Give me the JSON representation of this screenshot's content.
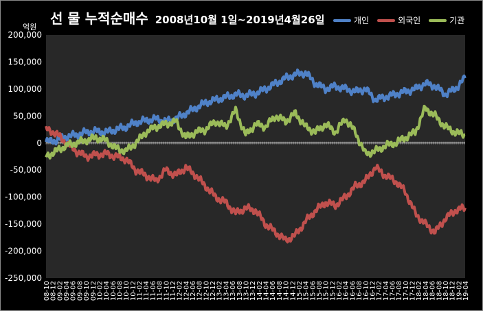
{
  "header": {
    "title_main": "선 물 누적순매수",
    "title_period": "2008년10월 1일~2019년4월26일",
    "unit_label": "억원"
  },
  "legend": [
    {
      "label": "개인",
      "color": "#4f81c7"
    },
    {
      "label": "외국인",
      "color": "#c0504d"
    },
    {
      "label": "기관",
      "color": "#9bbb59"
    }
  ],
  "chart_data": {
    "type": "line",
    "title": "선 물 누적순매수 2008년10월 1일~2019년4월26일",
    "ylabel": "억원",
    "ylim": [
      -250000,
      200000
    ],
    "yticks": [
      200000,
      150000,
      100000,
      50000,
      0,
      -50000,
      -100000,
      -150000,
      -200000,
      -250000
    ],
    "ytick_labels": [
      "200,000",
      "150,000",
      "100,000",
      "50,000",
      "0",
      "-50,000",
      "-100,000",
      "-150,000",
      "-200,000",
      "-250,000"
    ],
    "xtick_labels": [
      "08-10",
      "08-12",
      "09-02",
      "09-04",
      "09-06",
      "09-08",
      "09-10",
      "09-12",
      "10-02",
      "10-04",
      "10-06",
      "10-08",
      "10-10",
      "10-12",
      "11-02",
      "11-04",
      "11-06",
      "11-08",
      "11-10",
      "11-12",
      "12-02",
      "12-04",
      "12-06",
      "12-08",
      "12-10",
      "12-12",
      "13-02",
      "13-04",
      "13-06",
      "13-08",
      "13-10",
      "13-12",
      "14-02",
      "14-04",
      "14-06",
      "14-08",
      "14-10",
      "14-12",
      "15-02",
      "15-04",
      "15-06",
      "15-08",
      "15-10",
      "15-12",
      "16-02",
      "16-04",
      "16-06",
      "16-08",
      "16-10",
      "16-12",
      "17-02",
      "17-04",
      "17-06",
      "17-08",
      "17-10",
      "17-12",
      "18-02",
      "18-04",
      "18-06",
      "18-08",
      "18-10",
      "18-12",
      "19-02",
      "19-04"
    ],
    "grid": false,
    "legend_position": "top-right",
    "x": [
      "2008-10",
      "2009-01",
      "2009-04",
      "2009-07",
      "2009-10",
      "2010-01",
      "2010-04",
      "2010-07",
      "2010-10",
      "2011-01",
      "2011-04",
      "2011-07",
      "2011-10",
      "2012-01",
      "2012-04",
      "2012-07",
      "2012-10",
      "2013-01",
      "2013-04",
      "2013-07",
      "2013-10",
      "2014-01",
      "2014-04",
      "2014-07",
      "2014-10",
      "2015-01",
      "2015-04",
      "2015-07",
      "2015-10",
      "2016-01",
      "2016-04",
      "2016-07",
      "2016-10",
      "2017-01",
      "2017-04",
      "2017-07",
      "2017-10",
      "2018-01",
      "2018-04",
      "2018-07",
      "2018-10",
      "2019-01",
      "2019-04"
    ],
    "series": [
      {
        "name": "개인",
        "color": "#4f81c7",
        "values": [
          2000,
          5000,
          12000,
          15000,
          20000,
          22000,
          20000,
          25000,
          30000,
          38000,
          42000,
          45000,
          40000,
          45000,
          55000,
          65000,
          75000,
          80000,
          85000,
          90000,
          88000,
          92000,
          100000,
          110000,
          120000,
          127000,
          130000,
          110000,
          100000,
          105000,
          100000,
          95000,
          100000,
          80000,
          85000,
          90000,
          95000,
          100000,
          110000,
          105000,
          90000,
          100000,
          120000
        ]
      },
      {
        "name": "외국인",
        "color": "#c0504d",
        "values": [
          25000,
          18000,
          0,
          -15000,
          -25000,
          -22000,
          -20000,
          -25000,
          -30000,
          -50000,
          -60000,
          -70000,
          -50000,
          -60000,
          -45000,
          -60000,
          -80000,
          -100000,
          -110000,
          -130000,
          -120000,
          -125000,
          -150000,
          -165000,
          -180000,
          -170000,
          -145000,
          -125000,
          -110000,
          -115000,
          -100000,
          -80000,
          -70000,
          -45000,
          -60000,
          -70000,
          -90000,
          -130000,
          -150000,
          -165000,
          -140000,
          -125000,
          -120000
        ]
      },
      {
        "name": "기관",
        "color": "#9bbb59",
        "values": [
          -25000,
          -15000,
          -5000,
          0,
          5000,
          10000,
          5000,
          -10000,
          -15000,
          0,
          20000,
          30000,
          35000,
          40000,
          10000,
          20000,
          25000,
          40000,
          30000,
          60000,
          15000,
          35000,
          30000,
          50000,
          40000,
          55000,
          30000,
          20000,
          35000,
          20000,
          45000,
          20000,
          -20000,
          -15000,
          -5000,
          0,
          10000,
          20000,
          65000,
          50000,
          30000,
          20000,
          15000
        ]
      }
    ]
  }
}
